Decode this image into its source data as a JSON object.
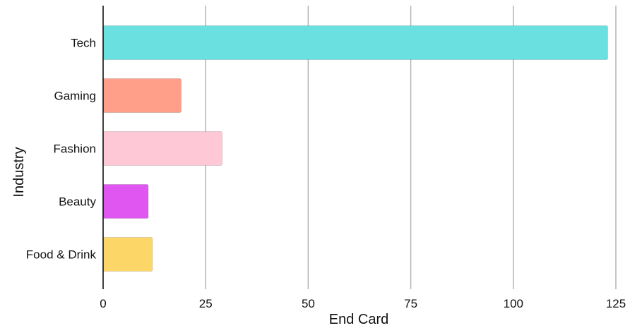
{
  "chart_data": {
    "type": "bar",
    "orientation": "horizontal",
    "categories": [
      "Tech",
      "Gaming",
      "Fashion",
      "Beauty",
      "Food & Drink"
    ],
    "values": [
      123,
      19,
      29,
      11,
      12
    ],
    "colors": [
      "#6be0e0",
      "#ff9f8a",
      "#ffc8d6",
      "#e056f0",
      "#fdd668"
    ],
    "xlabel": "End Card",
    "ylabel": "Industry",
    "xlim": [
      0,
      125
    ],
    "xticks": [
      "0",
      "25",
      "50",
      "75",
      "100",
      "125"
    ],
    "grid": "vertical",
    "grid_color": "#b3b3b3"
  }
}
